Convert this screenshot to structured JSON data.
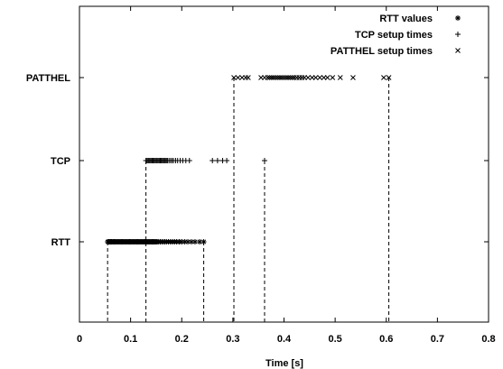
{
  "chart_data": {
    "type": "scatter",
    "title": "",
    "xlabel": "Time [s]",
    "ylabel": "",
    "xlim": [
      0,
      0.8
    ],
    "x_ticks": [
      "0",
      "0.1",
      "0.2",
      "0.3",
      "0.4",
      "0.5",
      "0.6",
      "0.7",
      "0.8"
    ],
    "x_tick_values": [
      0,
      0.1,
      0.2,
      0.3,
      0.4,
      0.5,
      0.6,
      0.7,
      0.8
    ],
    "categories": [
      "RTT",
      "TCP",
      "PATTHEL"
    ],
    "grid": false,
    "legend_position": "top-right",
    "series": [
      {
        "name": "RTT values",
        "marker": "asterisk",
        "category": "RTT",
        "x": [
          0.055,
          0.057,
          0.058,
          0.06,
          0.061,
          0.062,
          0.063,
          0.065,
          0.066,
          0.068,
          0.07,
          0.072,
          0.074,
          0.076,
          0.078,
          0.08,
          0.082,
          0.084,
          0.086,
          0.088,
          0.09,
          0.092,
          0.094,
          0.096,
          0.098,
          0.1,
          0.102,
          0.104,
          0.106,
          0.108,
          0.11,
          0.112,
          0.114,
          0.116,
          0.118,
          0.12,
          0.122,
          0.124,
          0.126,
          0.128,
          0.13,
          0.132,
          0.134,
          0.136,
          0.138,
          0.14,
          0.142,
          0.144,
          0.146,
          0.148,
          0.15,
          0.152,
          0.155,
          0.158,
          0.161,
          0.164,
          0.167,
          0.17,
          0.174,
          0.178,
          0.182,
          0.186,
          0.19,
          0.195,
          0.2,
          0.206,
          0.212,
          0.219,
          0.226,
          0.235,
          0.243
        ]
      },
      {
        "name": "TCP setup times",
        "marker": "plus",
        "category": "TCP",
        "x": [
          0.13,
          0.132,
          0.134,
          0.136,
          0.138,
          0.14,
          0.142,
          0.144,
          0.146,
          0.148,
          0.15,
          0.152,
          0.154,
          0.156,
          0.158,
          0.16,
          0.162,
          0.164,
          0.166,
          0.168,
          0.17,
          0.172,
          0.175,
          0.178,
          0.181,
          0.184,
          0.188,
          0.192,
          0.197,
          0.202,
          0.208,
          0.215,
          0.26,
          0.27,
          0.28,
          0.288,
          0.362
        ]
      },
      {
        "name": "PATTHEL setup times",
        "marker": "cross",
        "category": "PATTHEL",
        "x": [
          0.302,
          0.31,
          0.318,
          0.325,
          0.33,
          0.355,
          0.362,
          0.368,
          0.372,
          0.376,
          0.38,
          0.384,
          0.388,
          0.392,
          0.396,
          0.4,
          0.404,
          0.408,
          0.412,
          0.416,
          0.42,
          0.425,
          0.43,
          0.435,
          0.44,
          0.447,
          0.455,
          0.462,
          0.47,
          0.478,
          0.485,
          0.495,
          0.51,
          0.535,
          0.595,
          0.605
        ]
      }
    ],
    "range_markers": [
      {
        "category": "RTT",
        "min": 0.055,
        "max": 0.243
      },
      {
        "category": "TCP",
        "min": 0.13,
        "max": 0.362
      },
      {
        "category": "PATTHEL",
        "min": 0.302,
        "max": 0.605
      }
    ]
  }
}
